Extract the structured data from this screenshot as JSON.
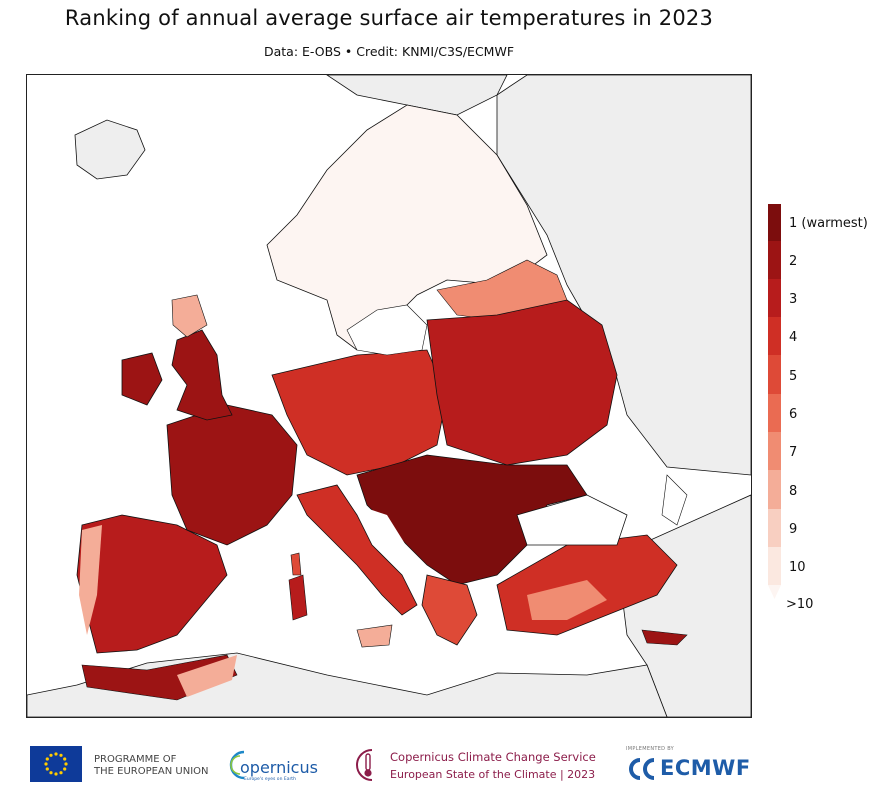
{
  "title": "Ranking of annual average surface air temperatures in 2023",
  "subtitle": "Data: E-OBS • Credit: KNMI/C3S/ECMWF",
  "colors": {
    "land_no_data": "#eeeeee",
    "sea": "#ffffff",
    "border": "#111111",
    "rank_scale": [
      "#7c0d0d",
      "#9c1414",
      "#b71c1c",
      "#cf2f25",
      "#de4a37",
      "#ea6b52",
      "#f08c72",
      "#f4ad98",
      "#f8cfc1",
      "#fbe8e0",
      "#fdf5f2"
    ]
  },
  "legend": {
    "labels": [
      "1 (warmest)",
      "2",
      "3",
      "4",
      "5",
      "6",
      "7",
      "8",
      "9",
      "10",
      ">10"
    ]
  },
  "footer": {
    "eu_line1": "PROGRAMME OF",
    "eu_line2": "THE EUROPEAN UNION",
    "copernicus_label": "opernicus",
    "copernicus_tag": "Europe's eyes on Earth",
    "c3s_line1": "Copernicus Climate Change Service",
    "c3s_line2": "European State of the Climate | 2023",
    "ecmwf_small": "IMPLEMENTED BY",
    "ecmwf_label": "ECMWF"
  }
}
